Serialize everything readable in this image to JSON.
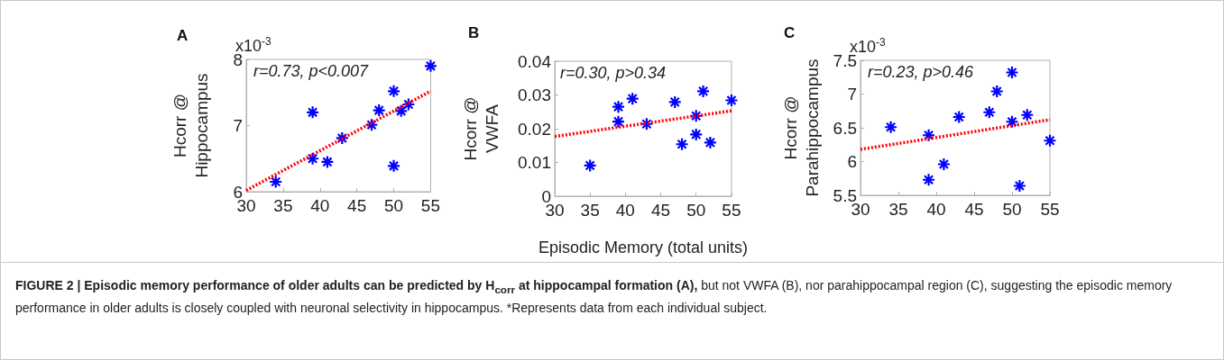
{
  "chart_data": [
    {
      "type": "scatter",
      "title": "A",
      "ylabel": "Hcorr @\nHippocampus",
      "annotations": [
        "r=0.73, p<0.007",
        "x10$^{-3}$"
      ],
      "xlim": [
        30,
        55
      ],
      "xticks": [
        30,
        35,
        40,
        45,
        50,
        55
      ],
      "ylim": [
        6,
        8
      ],
      "yticks": [
        6,
        7,
        8
      ],
      "grid": false,
      "series": [
        {
          "type": "scatter",
          "marker": "cross",
          "color": "#0000ff",
          "x": [
            34,
            39,
            39,
            41,
            43,
            47,
            48,
            50,
            50,
            51,
            52,
            55
          ],
          "values": [
            6.15,
            7.2,
            6.5,
            6.45,
            6.81,
            7.01,
            7.23,
            7.52,
            6.39,
            7.22,
            7.32,
            7.9
          ]
        },
        {
          "type": "line",
          "marker": "none",
          "line_style": "dotted",
          "color": "#ff0000",
          "x": [
            30,
            55
          ],
          "values": [
            6.02,
            7.52
          ]
        }
      ]
    },
    {
      "type": "scatter",
      "title": "B",
      "xlabel": "Episodic Memory (total units)",
      "ylabel": "Hcorr @\nVWFA",
      "annotations": [
        "r=0.30, p>0.34"
      ],
      "xlim": [
        30,
        55
      ],
      "xticks": [
        30,
        35,
        40,
        45,
        50,
        55
      ],
      "ylim": [
        0,
        0.04
      ],
      "yticks": [
        0,
        0.01,
        0.02,
        0.03,
        0.04
      ],
      "grid": false,
      "series": [
        {
          "type": "scatter",
          "marker": "cross",
          "color": "#0000ff",
          "x": [
            35,
            39,
            39,
            41,
            43,
            47,
            48,
            50,
            50,
            51,
            52,
            55
          ],
          "values": [
            0.0091,
            0.0265,
            0.0221,
            0.0289,
            0.0214,
            0.0279,
            0.0154,
            0.0238,
            0.0183,
            0.0311,
            0.0159,
            0.0284
          ]
        },
        {
          "type": "line",
          "marker": "none",
          "line_style": "dotted",
          "color": "#ff0000",
          "x": [
            30,
            55
          ],
          "values": [
            0.0177,
            0.0253
          ]
        }
      ]
    },
    {
      "type": "scatter",
      "title": "C",
      "ylabel": "Hcorr @\nParahippocampus",
      "annotations": [
        "r=0.23, p>0.46",
        "x10$^{-3}$"
      ],
      "xlim": [
        30,
        55
      ],
      "xticks": [
        30,
        35,
        40,
        45,
        50,
        55
      ],
      "ylim": [
        5.5,
        7.5
      ],
      "yticks": [
        5.5,
        6,
        6.5,
        7,
        7.5
      ],
      "grid": false,
      "series": [
        {
          "type": "scatter",
          "marker": "cross",
          "color": "#0000ff",
          "x": [
            34,
            39,
            39,
            41,
            43,
            47,
            48,
            50,
            50,
            51,
            52,
            55
          ],
          "values": [
            6.51,
            6.39,
            5.73,
            5.96,
            6.66,
            6.73,
            7.04,
            7.32,
            6.59,
            5.64,
            6.69,
            6.31
          ]
        },
        {
          "type": "line",
          "marker": "none",
          "line_style": "dotted",
          "color": "#ff0000",
          "x": [
            30,
            55
          ],
          "values": [
            6.18,
            6.62
          ]
        }
      ]
    },
    {
      "type": "other",
      "title": "FIGURE 2 | Episodic memory performance of older adults can be predicted by H$_{corr}$ at hippocampal formation (A),",
      "annotations": [
        "but not VWFA (B), nor parahippocampal region (C), suggesting the episodic memory performance in older adults is closely coupled with neuronal selectivity in hippocampus. *Represents data from each individual subject."
      ]
    }
  ]
}
